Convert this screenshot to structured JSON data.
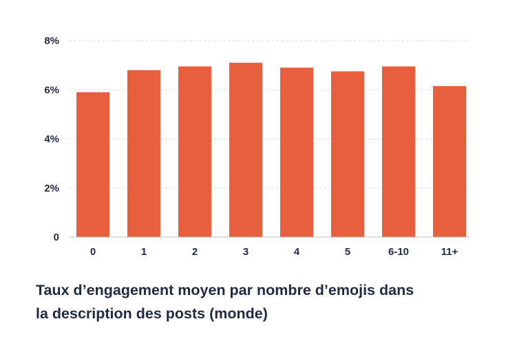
{
  "chart_data": {
    "type": "bar",
    "categories": [
      "0",
      "1",
      "2",
      "3",
      "4",
      "5",
      "6-10",
      "11+"
    ],
    "values": [
      5.9,
      6.8,
      6.95,
      7.1,
      6.9,
      6.75,
      6.95,
      6.15
    ],
    "ylim": [
      0,
      8
    ],
    "yticks": [
      0,
      2,
      4,
      6,
      8
    ],
    "ytick_labels": [
      "0",
      "2%",
      "4%",
      "6%",
      "8%"
    ],
    "grid": true,
    "bar_color": "#e85f3e",
    "grid_color": "#dddddd",
    "text_color": "#1f2a44",
    "title_lines": [
      "Taux d’engagement moyen par nombre d’emojis dans",
      "la description des posts (monde)"
    ]
  }
}
